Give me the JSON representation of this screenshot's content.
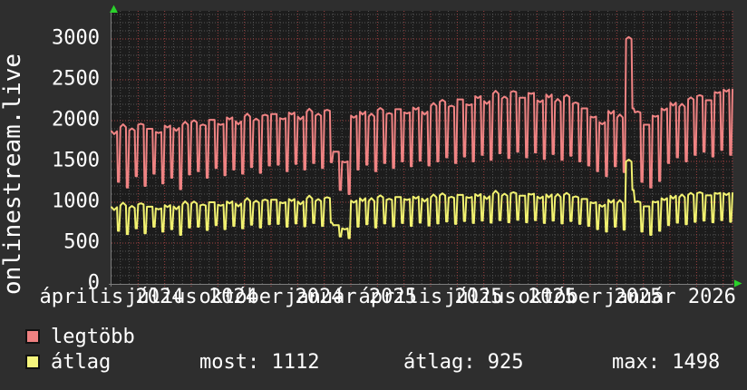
{
  "watermark": "onlinestream.live",
  "colors": {
    "background": "#2e2e2e",
    "plot_background": "#1c1c1c",
    "grid_minor": "#545454",
    "grid_major": "#9e4040",
    "axis_border": "#7d7d7d",
    "series_legtobb": "#ef8383",
    "series_atlag": "#f1f170",
    "swatch_legtobb": "#ee8181",
    "swatch_atlag": "#f5f57d",
    "text": "#ffffff",
    "arrow_green": "#2ad12a"
  },
  "legend": {
    "items": [
      {
        "label": "legtöbb",
        "color": "#ee8181"
      },
      {
        "label": "átlag",
        "color": "#f5f57d"
      }
    ]
  },
  "stats": {
    "most_text": "most: 1112",
    "atlag_text": "átlag: 925",
    "max_text": "max: 1498"
  },
  "chart_data": {
    "type": "line",
    "title": "",
    "xlabel": "",
    "ylabel": "",
    "grid": true,
    "legend_position": "bottom-left",
    "ylim": [
      0,
      3344
    ],
    "y_ticks": [
      0,
      500,
      1000,
      1500,
      2000,
      2500,
      3000
    ],
    "y_minor_step": 100,
    "months_total": 23.35,
    "x_labels": [
      "április 2024",
      "július 2024",
      "október 2024",
      "január 2025",
      "április 2025",
      "július 2025",
      "október 2025",
      "január 2026"
    ],
    "x_label_month_index": [
      0,
      3,
      6,
      9,
      12,
      15,
      18,
      21
    ],
    "sampling": "weekly alternating plateau-high and narrow dip-low values, Apr 2024 - Feb 2026",
    "series": [
      {
        "name": "legtöbb",
        "color": "#ef8383",
        "high": [
          1870,
          1920,
          1880,
          1950,
          1900,
          1860,
          1940,
          1910,
          1950,
          1980,
          1940,
          2010,
          1960,
          2040,
          1990,
          2050,
          2000,
          2060,
          2080,
          2030,
          2100,
          2050,
          2110,
          2060,
          2120,
          1620,
          1500,
          2060,
          2110,
          2050,
          2130,
          2080,
          2140,
          2100,
          2160,
          2110,
          2180,
          2230,
          2170,
          2260,
          2200,
          2300,
          2240,
          2330,
          2270,
          2350,
          2280,
          2340,
          2250,
          2320,
          2230,
          2290,
          2210,
          2150,
          2050,
          1980,
          2120,
          2040,
          3000,
          2100,
          1950,
          2060,
          2150,
          2220,
          2170,
          2260,
          2300,
          2250,
          2350,
          2380
        ],
        "low": [
          1250,
          1180,
          1320,
          1200,
          1350,
          1230,
          1300,
          1160,
          1340,
          1380,
          1300,
          1420,
          1330,
          1400,
          1350,
          1430,
          1360,
          1450,
          1460,
          1380,
          1470,
          1400,
          1480,
          1420,
          1490,
          1150,
          1100,
          1400,
          1460,
          1380,
          1480,
          1420,
          1500,
          1440,
          1510,
          1450,
          1500,
          1550,
          1480,
          1560,
          1500,
          1580,
          1520,
          1600,
          1540,
          1620,
          1550,
          1610,
          1530,
          1590,
          1520,
          1570,
          1500,
          1450,
          1380,
          1320,
          1440,
          1370,
          2150,
          1250,
          1180,
          1260,
          1480,
          1550,
          1500,
          1580,
          1620,
          1560,
          1640,
          1580
        ]
      },
      {
        "name": "átlag",
        "color": "#f1f170",
        "most": 1112,
        "atlag": 925,
        "max": 1498,
        "high": [
          940,
          960,
          930,
          975,
          945,
          925,
          965,
          950,
          975,
          985,
          960,
          1000,
          970,
          1010,
          985,
          1015,
          995,
          1020,
          1030,
          1000,
          1040,
          1010,
          1045,
          1015,
          1050,
          720,
          680,
          1020,
          1050,
          1015,
          1060,
          1030,
          1065,
          1040,
          1070,
          1045,
          1060,
          1085,
          1055,
          1090,
          1065,
          1100,
          1075,
          1105,
          1080,
          1110,
          1080,
          1105,
          1070,
          1095,
          1065,
          1090,
          1060,
          1040,
          1000,
          970,
          1030,
          990,
          1498,
          1000,
          950,
          1010,
          1050,
          1080,
          1060,
          1090,
          1110,
          1085,
          1115,
          1112
        ],
        "low": [
          650,
          610,
          680,
          620,
          700,
          640,
          670,
          600,
          690,
          700,
          660,
          720,
          670,
          710,
          680,
          725,
          690,
          730,
          735,
          700,
          740,
          705,
          745,
          710,
          750,
          580,
          560,
          700,
          730,
          690,
          740,
          705,
          745,
          710,
          750,
          715,
          740,
          765,
          735,
          770,
          745,
          775,
          750,
          780,
          755,
          785,
          755,
          780,
          745,
          775,
          740,
          770,
          735,
          710,
          670,
          640,
          700,
          665,
          1150,
          640,
          600,
          650,
          720,
          750,
          730,
          760,
          775,
          755,
          780,
          760
        ]
      }
    ]
  }
}
